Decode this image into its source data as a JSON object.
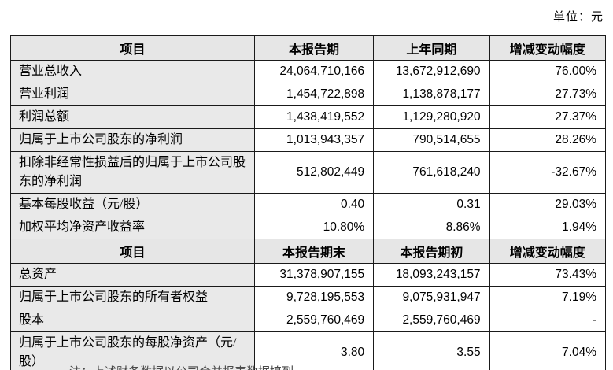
{
  "meta": {
    "unit_label": "单位：元"
  },
  "table": {
    "section1": {
      "headers": [
        "项目",
        "本报告期",
        "上年同期",
        "增减变动幅度"
      ],
      "rows": [
        {
          "item": "营业总收入",
          "current": "24,064,710,166",
          "prior": "13,672,912,690",
          "change": "76.00%"
        },
        {
          "item": "营业利润",
          "current": "1,454,722,898",
          "prior": "1,138,878,177",
          "change": "27.73%"
        },
        {
          "item": "利润总额",
          "current": "1,438,419,552",
          "prior": "1,129,280,920",
          "change": "27.37%"
        },
        {
          "item": "归属于上市公司股东的净利润",
          "current": "1,013,943,357",
          "prior": "790,514,655",
          "change": "28.26%"
        },
        {
          "item": "扣除非经常性损益后的归属于上市公司股东的净利润",
          "current": "512,802,449",
          "prior": "761,618,240",
          "change": "-32.67%"
        },
        {
          "item": "基本每股收益（元/股）",
          "current": "0.40",
          "prior": "0.31",
          "change": "29.03%"
        },
        {
          "item": "加权平均净资产收益率",
          "current": "10.80%",
          "prior": "8.86%",
          "change": "1.94%"
        }
      ]
    },
    "section2": {
      "headers": [
        "项目",
        "本报告期末",
        "本报告期初",
        "增减变动幅度"
      ],
      "rows": [
        {
          "item": "总资产",
          "current": "31,378,907,155",
          "prior": "18,093,243,157",
          "change": "73.43%"
        },
        {
          "item": "归属于上市公司股东的所有者权益",
          "current": "9,728,195,553",
          "prior": "9,075,931,947",
          "change": "7.19%"
        },
        {
          "item": "股本",
          "current": "2,559,760,469",
          "prior": "2,559,760,469",
          "change": "-"
        },
        {
          "item": "归属于上市公司股东的每股净资产（元/股）",
          "current": "3.80",
          "prior": "3.55",
          "change": "7.04%"
        }
      ]
    }
  },
  "footer": {
    "clipped_note": "注：上述财务数据以公司合并报表数据填列。"
  }
}
